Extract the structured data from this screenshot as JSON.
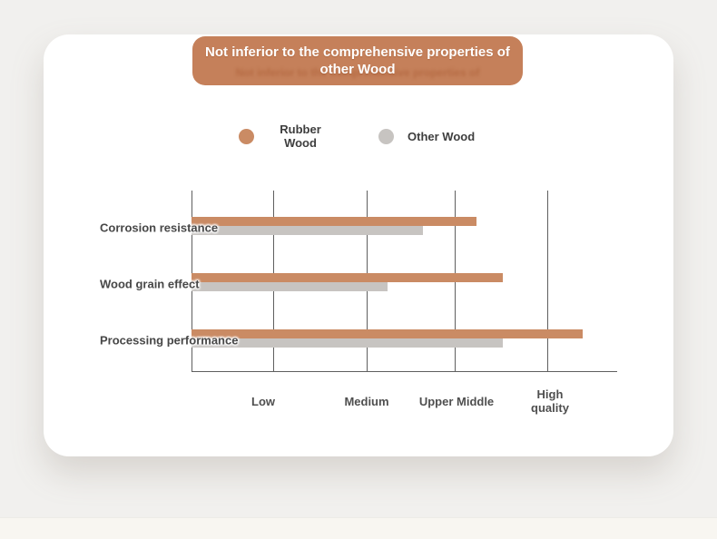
{
  "banner": {
    "title_line1": "Not inferior to the comprehensive properties of",
    "title_line2": "other Wood",
    "bg_color": "#c5805a"
  },
  "legend": {
    "items": [
      {
        "label": "Rubber Wood",
        "color": "#ca8b64"
      },
      {
        "label": "Other Wood",
        "color": "#c7c4c1"
      }
    ]
  },
  "chart_data": {
    "type": "bar",
    "orientation": "horizontal",
    "title": "Not inferior to the comprehensive properties of other Wood",
    "categories": [
      "Corrosion resistance",
      "Wood grain effect",
      "Processing performance"
    ],
    "series": [
      {
        "name": "Rubber Wood",
        "color": "#ca8b64",
        "values": [
          3.2,
          3.5,
          4.4
        ]
      },
      {
        "name": "Other Wood",
        "color": "#c7c4c1",
        "values": [
          2.6,
          2.2,
          3.5
        ]
      }
    ],
    "x_tick_labels": [
      "Low",
      "Medium",
      "Upper Middle",
      "High quality"
    ],
    "x_tick_values": [
      1,
      2,
      3,
      4
    ],
    "xlim": [
      0,
      4.8
    ],
    "grid": "vertical-gridlines",
    "legend_position": "top",
    "axis_color": "#5f5f5f"
  },
  "colors": {
    "page_bg": "#f1f0ee",
    "card_bg": "#ffffff",
    "bottom_band_bg": "#f8f6f1"
  }
}
